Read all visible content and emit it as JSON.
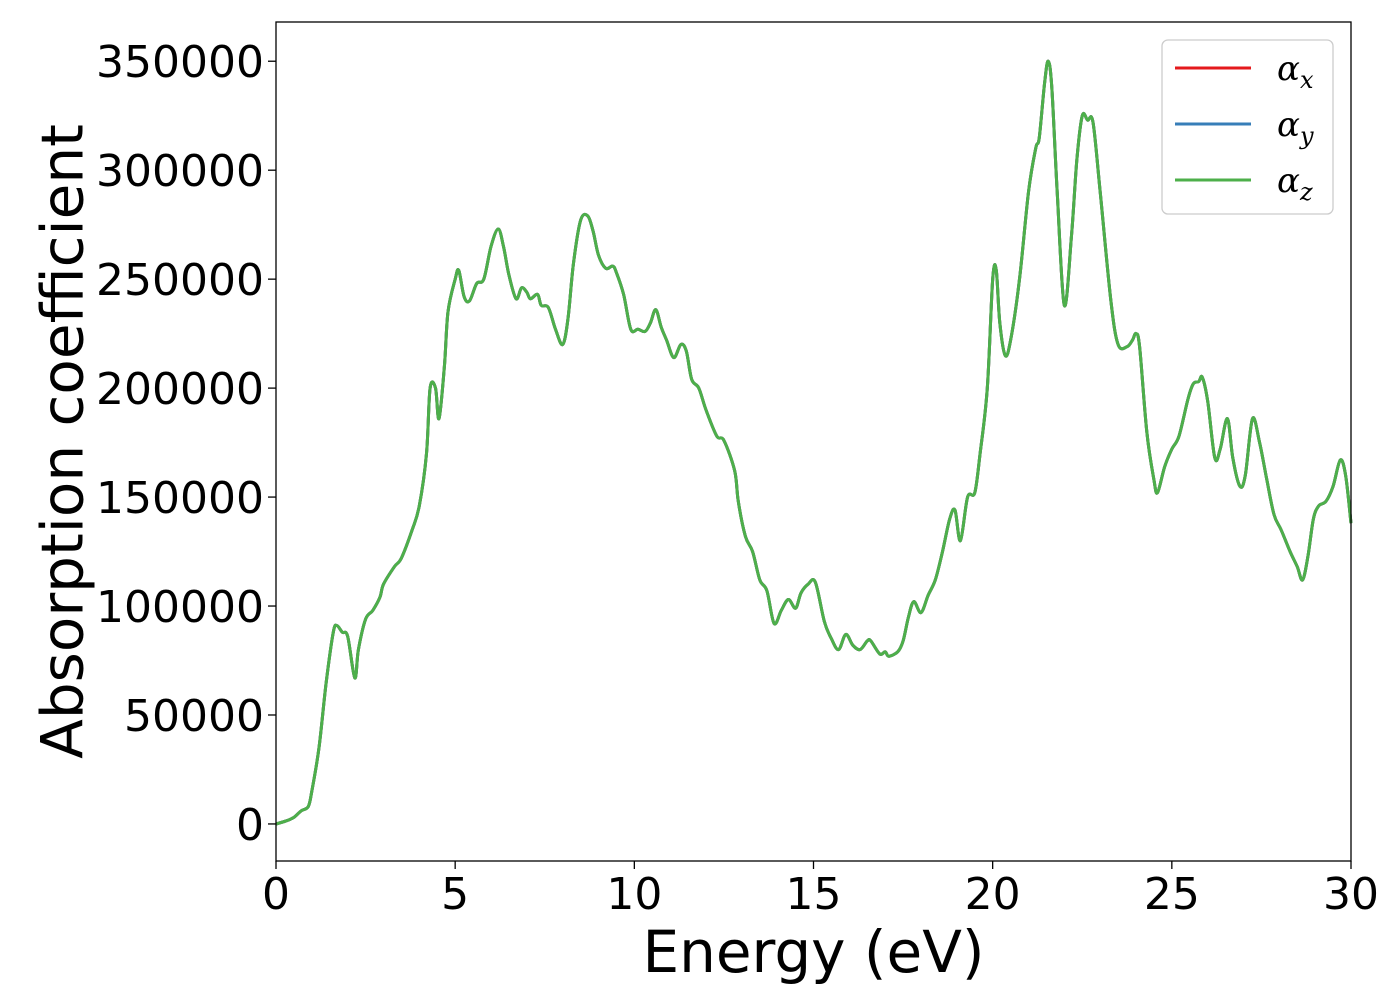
{
  "chart_data": {
    "type": "line",
    "title": "",
    "xlabel": "Energy (eV)",
    "ylabel": "Absorption coefficient",
    "xlim": [
      0,
      30
    ],
    "ylim": [
      -17000,
      368000
    ],
    "x_ticks": [
      0,
      5,
      10,
      15,
      20,
      25,
      30
    ],
    "y_ticks": [
      0,
      50000,
      100000,
      150000,
      200000,
      250000,
      300000,
      350000
    ],
    "grid": false,
    "legend_position": "top-right",
    "series": [
      {
        "name": "α",
        "subscript": "x",
        "color": "#e41a1c"
      },
      {
        "name": "α",
        "subscript": "y",
        "color": "#377eb8"
      },
      {
        "name": "α",
        "subscript": "z",
        "color": "#4daf4a"
      }
    ],
    "x": [
      0,
      0.3,
      0.5,
      0.7,
      0.9,
      1.0,
      1.2,
      1.4,
      1.6,
      1.7,
      1.85,
      2.0,
      2.2,
      2.3,
      2.5,
      2.7,
      2.9,
      3.0,
      3.3,
      3.5,
      3.8,
      4.0,
      4.2,
      4.3,
      4.45,
      4.55,
      4.7,
      4.8,
      5.0,
      5.1,
      5.25,
      5.4,
      5.6,
      5.8,
      6.0,
      6.2,
      6.35,
      6.5,
      6.7,
      6.85,
      7.0,
      7.1,
      7.3,
      7.4,
      7.6,
      7.8,
      8.0,
      8.15,
      8.3,
      8.5,
      8.7,
      8.85,
      9.0,
      9.2,
      9.4,
      9.5,
      9.7,
      9.9,
      10.1,
      10.3,
      10.45,
      10.6,
      10.75,
      10.9,
      11.1,
      11.3,
      11.45,
      11.6,
      11.8,
      12.0,
      12.3,
      12.5,
      12.8,
      12.9,
      13.1,
      13.3,
      13.5,
      13.7,
      13.9,
      14.1,
      14.3,
      14.5,
      14.65,
      14.85,
      15.05,
      15.3,
      15.5,
      15.7,
      15.9,
      16.1,
      16.3,
      16.5,
      16.6,
      16.85,
      17.0,
      17.1,
      17.35,
      17.5,
      17.65,
      17.8,
      18.0,
      18.2,
      18.4,
      18.6,
      18.8,
      18.95,
      19.1,
      19.3,
      19.5,
      19.65,
      19.85,
      20.0,
      20.1,
      20.2,
      20.35,
      20.5,
      20.75,
      21.0,
      21.2,
      21.3,
      21.45,
      21.55,
      21.65,
      21.8,
      22.0,
      22.2,
      22.35,
      22.5,
      22.65,
      22.8,
      23.0,
      23.3,
      23.5,
      23.75,
      23.9,
      24.0,
      24.1,
      24.3,
      24.5,
      24.6,
      24.8,
      25.0,
      25.2,
      25.45,
      25.6,
      25.75,
      25.85,
      26.0,
      26.2,
      26.35,
      26.55,
      26.7,
      26.9,
      27.05,
      27.25,
      27.45,
      27.65,
      27.85,
      28.05,
      28.3,
      28.5,
      28.65,
      28.8,
      28.95,
      29.1,
      29.3,
      29.5,
      29.7,
      29.85,
      30.0
    ],
    "values": [
      0,
      1500,
      3000,
      6000,
      8000,
      15000,
      35000,
      65000,
      88000,
      91000,
      88000,
      86000,
      67000,
      80000,
      94000,
      98000,
      104000,
      110000,
      118000,
      122000,
      135000,
      146000,
      170000,
      200000,
      200000,
      186000,
      210000,
      235000,
      250000,
      254000,
      242000,
      240000,
      248000,
      250000,
      265000,
      273000,
      265000,
      252000,
      241000,
      246000,
      244000,
      241000,
      243000,
      238000,
      237000,
      227000,
      220000,
      232000,
      257000,
      277000,
      279000,
      272000,
      261000,
      255000,
      256000,
      253000,
      243000,
      227000,
      227000,
      226000,
      230000,
      236000,
      228000,
      222000,
      214000,
      220000,
      217000,
      204000,
      200000,
      190000,
      178000,
      176000,
      162000,
      148000,
      132000,
      125000,
      112000,
      107000,
      92000,
      98000,
      103000,
      99000,
      106000,
      110000,
      111000,
      93000,
      85000,
      80000,
      87000,
      82000,
      80000,
      84000,
      84000,
      78000,
      79000,
      77000,
      79000,
      84000,
      95000,
      102000,
      97000,
      105000,
      112000,
      125000,
      140000,
      144000,
      130000,
      150000,
      152000,
      170000,
      200000,
      250000,
      254000,
      230000,
      215000,
      222000,
      250000,
      290000,
      310000,
      315000,
      340000,
      350000,
      338000,
      290000,
      238000,
      270000,
      305000,
      325000,
      323000,
      322000,
      290000,
      240000,
      220000,
      219000,
      222000,
      225000,
      219000,
      180000,
      158000,
      152000,
      164000,
      172000,
      178000,
      195000,
      202000,
      203000,
      205000,
      194000,
      168000,
      172000,
      186000,
      168000,
      155000,
      160000,
      186000,
      175000,
      158000,
      142000,
      135000,
      125000,
      118000,
      112000,
      123000,
      140000,
      146000,
      148000,
      155000,
      167000,
      160000,
      138000
    ]
  }
}
